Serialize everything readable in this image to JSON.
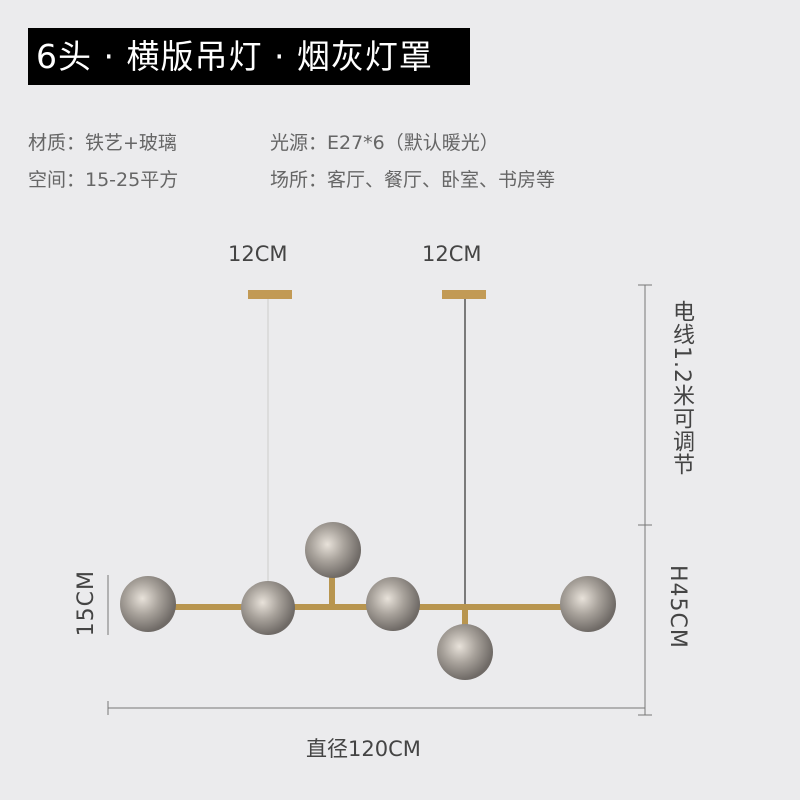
{
  "title": "6头 · 横版吊灯 · 烟灰灯罩",
  "specs": {
    "material": "材质：铁艺+玻璃",
    "light_source": "光源：E27*6（默认暖光）",
    "space": "空间：15-25平方",
    "venue": "场所：客厅、餐厅、卧室、书房等"
  },
  "dimensions": {
    "canopy_left": "12CM",
    "canopy_right": "12CM",
    "cord": "电线1.2米可调节",
    "height": "H45CM",
    "globe": "15CM",
    "width": "直径120CM"
  },
  "colors": {
    "background": "#ebebed",
    "brass": "#b8954f",
    "smoke_glass": "#9a9590"
  }
}
